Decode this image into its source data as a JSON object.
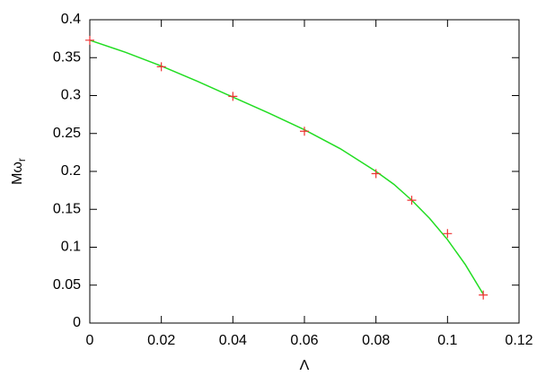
{
  "chart_data": {
    "type": "line",
    "xlabel": "Λ",
    "ylabel": "Mω",
    "ylabel_subscript": "r",
    "xlim": [
      0,
      0.12
    ],
    "xticks": [
      0,
      0.02,
      0.04,
      0.06,
      0.08,
      0.1,
      0.12
    ],
    "ylim": [
      0,
      0.4
    ],
    "yticks": [
      0,
      0.05,
      0.1,
      0.15,
      0.2,
      0.25,
      0.3,
      0.35,
      0.4
    ],
    "grid": false,
    "series": [
      {
        "kind": "line",
        "color": "#22dd22",
        "x": [
          0,
          0.01,
          0.02,
          0.03,
          0.04,
          0.05,
          0.06,
          0.07,
          0.08,
          0.085,
          0.09,
          0.095,
          0.1,
          0.105,
          0.11
        ],
        "values": [
          0.373,
          0.357,
          0.339,
          0.319,
          0.298,
          0.277,
          0.255,
          0.23,
          0.2,
          0.183,
          0.162,
          0.138,
          0.11,
          0.077,
          0.038
        ]
      },
      {
        "kind": "points",
        "color": "#ee3333",
        "x": [
          0,
          0.02,
          0.04,
          0.06,
          0.08,
          0.09,
          0.1,
          0.11
        ],
        "values": [
          0.373,
          0.338,
          0.299,
          0.253,
          0.197,
          0.162,
          0.118,
          0.037
        ]
      }
    ]
  }
}
